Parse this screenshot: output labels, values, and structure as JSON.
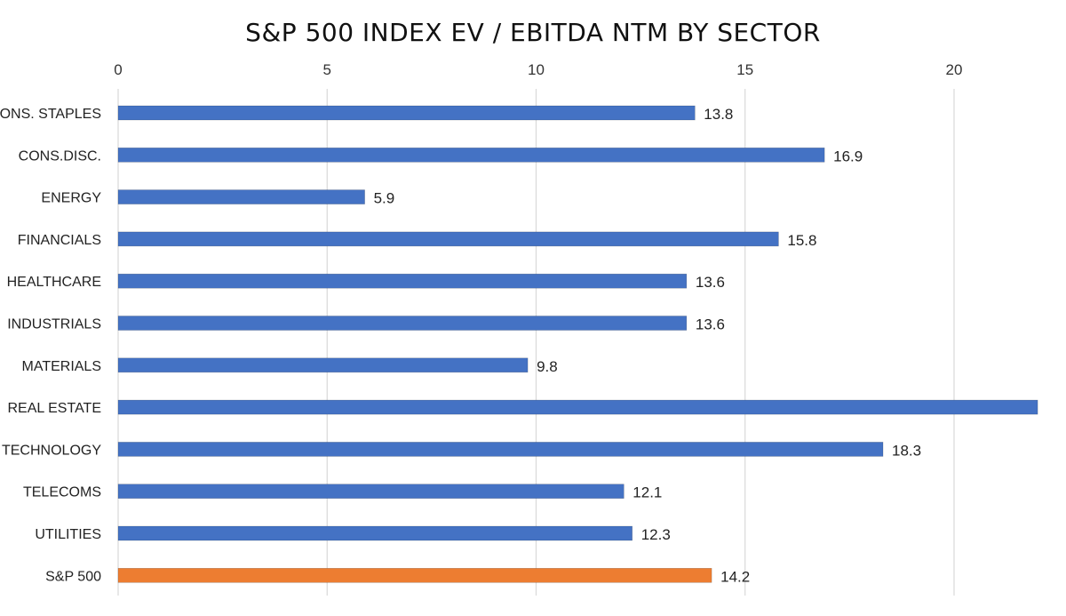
{
  "chart_data": {
    "type": "bar",
    "orientation": "horizontal",
    "title": "S&P 500 INDEX EV / EBITDA NTM BY SECTOR",
    "categories": [
      "CONS. STAPLES",
      "CONS.DISC.",
      "ENERGY",
      "FINANCIALS",
      "HEALTHCARE",
      "INDUSTRIALS",
      "MATERIALS",
      "REAL ESTATE",
      "TECHNOLOGY",
      "TELECOMS",
      "UTILITIES",
      "S&P 500"
    ],
    "values": [
      13.8,
      16.9,
      5.9,
      15.8,
      13.6,
      13.6,
      9.8,
      22.0,
      18.3,
      12.1,
      12.3,
      14.2
    ],
    "data_labels": [
      "13.8",
      "16.9",
      "5.9",
      "15.8",
      "13.6",
      "13.6",
      "9.8",
      "",
      "18.3",
      "12.1",
      "12.3",
      "14.2"
    ],
    "colors": [
      "#4472c4",
      "#4472c4",
      "#4472c4",
      "#4472c4",
      "#4472c4",
      "#4472c4",
      "#4472c4",
      "#4472c4",
      "#4472c4",
      "#4472c4",
      "#4472c4",
      "#ed7d31"
    ],
    "x_ticks": [
      "0",
      "5",
      "10",
      "15",
      "20"
    ],
    "x_tick_values": [
      0,
      5,
      10,
      15,
      20
    ],
    "xlim": [
      0,
      22
    ],
    "xaxis_position": "top",
    "grid": true,
    "legend": "none"
  }
}
